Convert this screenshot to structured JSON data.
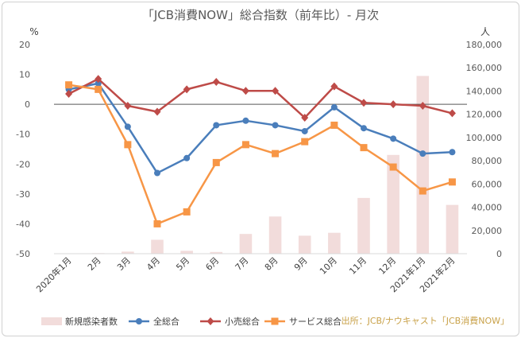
{
  "chart_data": {
    "type": "line",
    "title": "「JCB消費NOW」総合指数（前年比）- 月次",
    "y_left_unit": "%",
    "y_right_unit": "人",
    "ylim_left": [
      -50,
      20
    ],
    "ylim_right": [
      0,
      180000
    ],
    "y_left_ticks": [
      "20",
      "10",
      "0",
      "-10",
      "-20",
      "-30",
      "-40",
      "-50"
    ],
    "y_right_ticks": [
      "180,000",
      "160,000",
      "140,000",
      "120,000",
      "100,000",
      "80,000",
      "60,000",
      "40,000",
      "20,000",
      "0"
    ],
    "categories": [
      "2020年1月",
      "2月",
      "3月",
      "4月",
      "5月",
      "6月",
      "7月",
      "8月",
      "9月",
      "10月",
      "11月",
      "12月",
      "2021年1月",
      "2021年2月"
    ],
    "bars": {
      "name": "新規感染者数",
      "color": "#f2dcdb",
      "values": [
        300,
        500,
        1800,
        12000,
        2500,
        1500,
        17000,
        32000,
        15500,
        18000,
        48000,
        85000,
        153000,
        42000
      ]
    },
    "series": [
      {
        "name": "全総合",
        "color": "#4a7ebb",
        "marker": "circle",
        "values": [
          5,
          7,
          -7.5,
          -23,
          -18,
          -7,
          -5.5,
          -7,
          -9,
          -1,
          -8,
          -11.5,
          -16.5,
          -16
        ]
      },
      {
        "name": "小売総合",
        "color": "#be4b48",
        "marker": "diamond",
        "values": [
          3.5,
          8.5,
          -0.5,
          -2.5,
          5,
          7.5,
          4.5,
          4.5,
          -4.5,
          6,
          0.5,
          0,
          -0.5,
          -3
        ]
      },
      {
        "name": "サービス総合",
        "color": "#f79646",
        "marker": "square",
        "values": [
          6.5,
          5,
          -13.5,
          -40,
          -36,
          -19.5,
          -13.5,
          -16.5,
          -12.5,
          -7,
          -14.5,
          -21,
          -29,
          -26
        ]
      }
    ],
    "grid": false
  },
  "source": "出所：JCB/ナウキャスト「JCB消費NOW」"
}
